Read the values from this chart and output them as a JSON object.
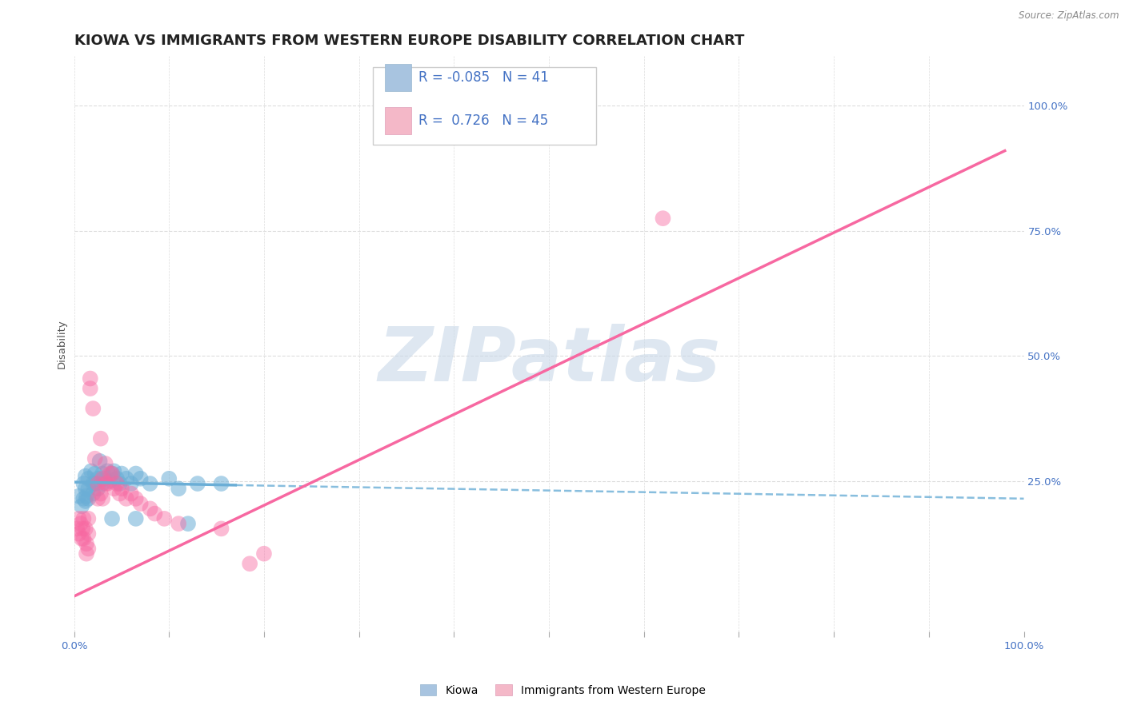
{
  "title": "KIOWA VS IMMIGRANTS FROM WESTERN EUROPE DISABILITY CORRELATION CHART",
  "source": "Source: ZipAtlas.com",
  "ylabel": "Disability",
  "legend_entries": [
    {
      "label": "Kiowa",
      "color_box": "#a8c4e0",
      "R": -0.085,
      "N": 41
    },
    {
      "label": "Immigrants from Western Europe",
      "color_box": "#f4b8c8",
      "R": 0.726,
      "N": 45
    }
  ],
  "kiowa_color": "#6baed6",
  "immigrants_color": "#f768a1",
  "kiowa_scatter": [
    [
      0.005,
      0.22
    ],
    [
      0.008,
      0.2
    ],
    [
      0.01,
      0.245
    ],
    [
      0.01,
      0.215
    ],
    [
      0.012,
      0.26
    ],
    [
      0.012,
      0.235
    ],
    [
      0.012,
      0.21
    ],
    [
      0.013,
      0.22
    ],
    [
      0.015,
      0.255
    ],
    [
      0.015,
      0.235
    ],
    [
      0.015,
      0.215
    ],
    [
      0.018,
      0.27
    ],
    [
      0.02,
      0.245
    ],
    [
      0.02,
      0.225
    ],
    [
      0.022,
      0.265
    ],
    [
      0.022,
      0.245
    ],
    [
      0.025,
      0.255
    ],
    [
      0.025,
      0.235
    ],
    [
      0.027,
      0.29
    ],
    [
      0.03,
      0.265
    ],
    [
      0.03,
      0.245
    ],
    [
      0.032,
      0.255
    ],
    [
      0.035,
      0.27
    ],
    [
      0.038,
      0.25
    ],
    [
      0.04,
      0.265
    ],
    [
      0.042,
      0.27
    ],
    [
      0.045,
      0.255
    ],
    [
      0.048,
      0.245
    ],
    [
      0.05,
      0.265
    ],
    [
      0.055,
      0.255
    ],
    [
      0.06,
      0.245
    ],
    [
      0.065,
      0.265
    ],
    [
      0.07,
      0.255
    ],
    [
      0.08,
      0.245
    ],
    [
      0.1,
      0.255
    ],
    [
      0.11,
      0.235
    ],
    [
      0.13,
      0.245
    ],
    [
      0.04,
      0.175
    ],
    [
      0.065,
      0.175
    ],
    [
      0.12,
      0.165
    ],
    [
      0.155,
      0.245
    ]
  ],
  "immigrants_scatter": [
    [
      0.003,
      0.155
    ],
    [
      0.005,
      0.175
    ],
    [
      0.005,
      0.145
    ],
    [
      0.007,
      0.165
    ],
    [
      0.008,
      0.135
    ],
    [
      0.009,
      0.155
    ],
    [
      0.01,
      0.175
    ],
    [
      0.01,
      0.135
    ],
    [
      0.012,
      0.155
    ],
    [
      0.013,
      0.125
    ],
    [
      0.013,
      0.105
    ],
    [
      0.015,
      0.175
    ],
    [
      0.015,
      0.145
    ],
    [
      0.015,
      0.115
    ],
    [
      0.017,
      0.455
    ],
    [
      0.017,
      0.435
    ],
    [
      0.02,
      0.395
    ],
    [
      0.022,
      0.295
    ],
    [
      0.025,
      0.245
    ],
    [
      0.025,
      0.215
    ],
    [
      0.028,
      0.335
    ],
    [
      0.028,
      0.225
    ],
    [
      0.03,
      0.255
    ],
    [
      0.03,
      0.215
    ],
    [
      0.033,
      0.285
    ],
    [
      0.033,
      0.245
    ],
    [
      0.035,
      0.245
    ],
    [
      0.038,
      0.265
    ],
    [
      0.04,
      0.265
    ],
    [
      0.042,
      0.235
    ],
    [
      0.045,
      0.245
    ],
    [
      0.048,
      0.225
    ],
    [
      0.05,
      0.235
    ],
    [
      0.055,
      0.215
    ],
    [
      0.06,
      0.225
    ],
    [
      0.065,
      0.215
    ],
    [
      0.07,
      0.205
    ],
    [
      0.08,
      0.195
    ],
    [
      0.085,
      0.185
    ],
    [
      0.095,
      0.175
    ],
    [
      0.11,
      0.165
    ],
    [
      0.155,
      0.155
    ],
    [
      0.2,
      0.105
    ],
    [
      0.62,
      0.775
    ],
    [
      0.185,
      0.085
    ]
  ],
  "kiowa_line_solid": {
    "x0": 0.0,
    "x1": 0.17,
    "y0": 0.248,
    "y1": 0.242
  },
  "kiowa_line_dashed": {
    "x0": 0.17,
    "x1": 1.0,
    "y0": 0.242,
    "y1": 0.215
  },
  "immigrants_line": {
    "x0": 0.0,
    "x1": 0.98,
    "y0": 0.02,
    "y1": 0.91
  },
  "xlim": [
    0.0,
    1.0
  ],
  "ylim": [
    -0.05,
    1.1
  ],
  "right_yticks": [
    1.0,
    0.75,
    0.5,
    0.25
  ],
  "right_yticklabels": [
    "100.0%",
    "75.0%",
    "50.0%",
    "25.0%"
  ],
  "background_color": "#ffffff",
  "grid_color": "#dddddd",
  "watermark_text": "ZIPatlas",
  "title_fontsize": 13,
  "axis_fontsize": 9.5
}
